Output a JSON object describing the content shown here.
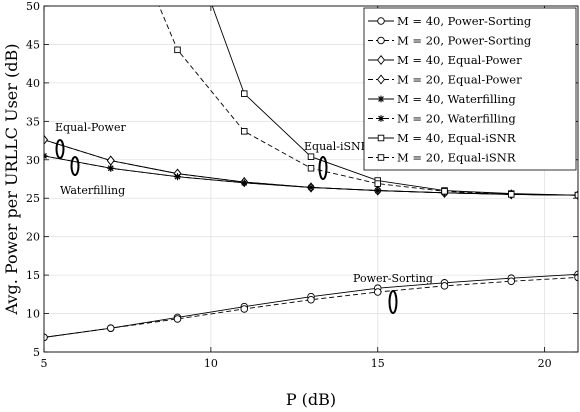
{
  "chart_data": {
    "type": "line",
    "xlabel": "P (dB)",
    "ylabel": "Avg. Power per URLLC User (dB)",
    "xlim": [
      5,
      21
    ],
    "ylim": [
      5,
      50
    ],
    "xticks": [
      5,
      10,
      15,
      20
    ],
    "yticks": [
      5,
      10,
      15,
      20,
      25,
      30,
      35,
      40,
      45,
      50
    ],
    "grid": true,
    "legend_position": "top-right",
    "series": [
      {
        "name": "M = 40, Power-Sorting",
        "marker": "circle",
        "dash": "solid",
        "x": [
          5,
          7,
          9,
          11,
          13,
          15,
          17,
          19,
          21
        ],
        "y": [
          6.9,
          8.1,
          9.5,
          10.9,
          12.2,
          13.3,
          14.0,
          14.6,
          15.1
        ]
      },
      {
        "name": "M = 20, Power-Sorting",
        "marker": "circle",
        "dash": "dashed",
        "x": [
          5,
          7,
          9,
          11,
          13,
          15,
          17,
          19,
          21
        ],
        "y": [
          6.9,
          8.1,
          9.3,
          10.6,
          11.8,
          12.8,
          13.6,
          14.2,
          14.7
        ]
      },
      {
        "name": "M = 40, Equal-Power",
        "marker": "diamond",
        "dash": "solid",
        "x": [
          5,
          7,
          9,
          11,
          13,
          15,
          17,
          19,
          21
        ],
        "y": [
          32.6,
          29.9,
          28.2,
          27.1,
          26.4,
          26.0,
          25.7,
          25.5,
          25.4
        ]
      },
      {
        "name": "M = 20, Equal-Power",
        "marker": "diamond",
        "dash": "dashed",
        "x": [
          5,
          7,
          9,
          11,
          13,
          15,
          17,
          19,
          21
        ],
        "y": [
          32.6,
          29.9,
          28.2,
          27.1,
          26.4,
          26.0,
          25.7,
          25.5,
          25.4
        ]
      },
      {
        "name": "M = 40, Waterfilling",
        "marker": "star",
        "dash": "solid",
        "x": [
          5,
          7,
          9,
          11,
          13,
          15,
          17,
          19,
          21
        ],
        "y": [
          30.5,
          28.9,
          27.8,
          27.0,
          26.4,
          26.0,
          25.7,
          25.5,
          25.4
        ]
      },
      {
        "name": "M = 20, Waterfilling",
        "marker": "star",
        "dash": "dashed",
        "x": [
          5,
          7,
          9,
          11,
          13,
          15,
          17,
          19,
          21
        ],
        "y": [
          30.5,
          28.9,
          27.8,
          27.0,
          26.4,
          26.0,
          25.7,
          25.5,
          25.4
        ]
      },
      {
        "name": "M = 40, Equal-iSNR",
        "marker": "square",
        "dash": "solid",
        "x": [
          10,
          11,
          13,
          15,
          17,
          19,
          21
        ],
        "y": [
          50.5,
          38.6,
          30.4,
          27.3,
          26.0,
          25.6,
          25.4
        ]
      },
      {
        "name": "M = 20, Equal-iSNR",
        "marker": "square",
        "dash": "dashed",
        "x": [
          8.4,
          9,
          11,
          13,
          15,
          17,
          19,
          21
        ],
        "y": [
          50.5,
          44.3,
          33.7,
          28.9,
          26.9,
          25.9,
          25.5,
          25.4
        ]
      }
    ],
    "annotations": [
      "Equal-Power",
      "Waterfilling",
      "Equal-iSNR",
      "Power-Sorting"
    ]
  }
}
